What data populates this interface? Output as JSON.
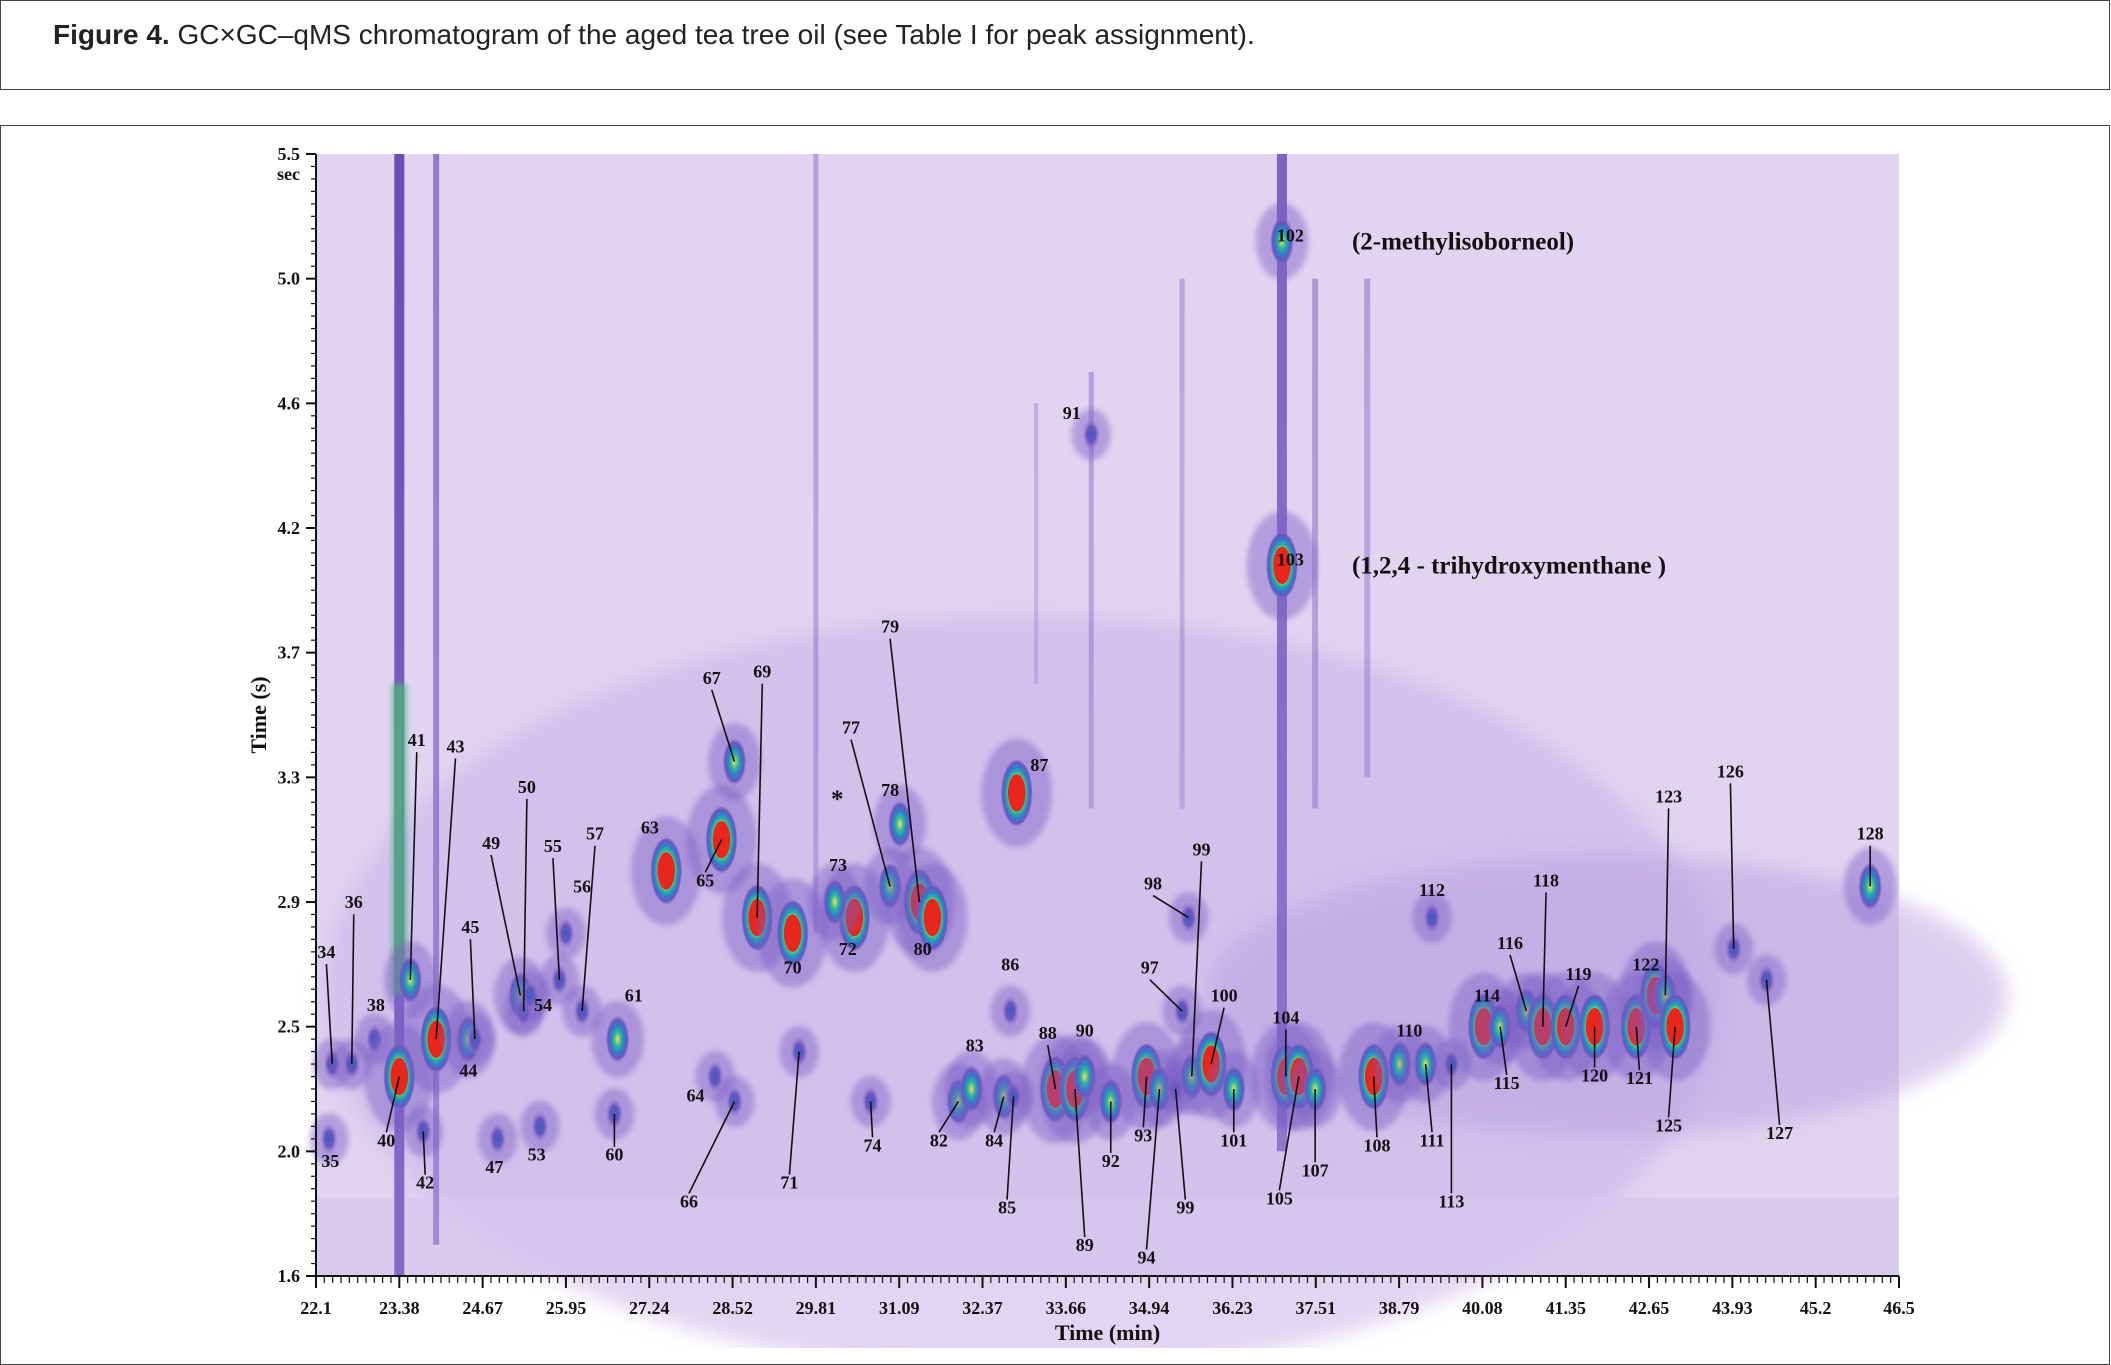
{
  "caption": {
    "label": "Figure 4.",
    "text": " GC×GC–qMS chromatogram of the aged tea tree oil (see Table I for peak assignment)."
  },
  "chart_data": {
    "type": "heatmap",
    "xlabel": "Time (min)",
    "ylabel": "Time (s)",
    "yunit_top": "sec",
    "xlim": [
      22.1,
      46.5
    ],
    "ylim": [
      1.6,
      5.5
    ],
    "x_ticks": [
      "22.1",
      "23.38",
      "24.67",
      "25.95",
      "27.24",
      "28.52",
      "29.81",
      "31.09",
      "32.37",
      "33.66",
      "34.94",
      "36.23",
      "37.51",
      "38.79",
      "40.08",
      "41.35",
      "42.65",
      "43.93",
      "45.2",
      "46.5"
    ],
    "y_ticks": [
      {
        "label": "1.6",
        "value": 1.6
      },
      {
        "label": "2.0",
        "value": 2.0
      },
      {
        "label": "2.5",
        "value": 2.5
      },
      {
        "label": "2.9",
        "value": 2.9
      },
      {
        "label": "3.3",
        "value": 3.3
      },
      {
        "label": "3.7",
        "value": 3.7
      },
      {
        "label": "4.2",
        "value": 4.2
      },
      {
        "label": "4.6",
        "value": 4.6
      },
      {
        "label": "5.0",
        "value": 5.0
      },
      {
        "label": "5.5",
        "value": 5.5
      }
    ],
    "colors": {
      "background": "#e8dff2",
      "low": "#8a6ec9",
      "mid": "#2fa3c9",
      "high": "#f6e24a",
      "peak": "#e8261c"
    },
    "annotations": [
      {
        "peak": "102",
        "text": "(2-methylisoborneol)",
        "x": 36.99,
        "y": 5.15
      },
      {
        "peak": "103",
        "text": "(1,2,4 - trihydroxymenthane   )",
        "x": 36.99,
        "y": 4.05
      }
    ],
    "asterisk": {
      "text": "*",
      "x": 29.95,
      "y": 3.25
    },
    "peaks": [
      {
        "id": "34",
        "x": 22.35,
        "y": 2.35,
        "i": 0.2,
        "lx": 22.26,
        "ly": 2.72
      },
      {
        "id": "35",
        "x": 22.3,
        "y": 2.05,
        "i": 0.1,
        "lx": 22.32,
        "ly": 1.95
      },
      {
        "id": "36",
        "x": 22.65,
        "y": 2.35,
        "i": 0.2,
        "lx": 22.68,
        "ly": 2.88
      },
      {
        "id": "38",
        "x": 23.0,
        "y": 2.45,
        "i": 0.4,
        "lx": 23.02,
        "ly": 2.55
      },
      {
        "id": "40",
        "x": 23.38,
        "y": 2.3,
        "i": 1.0,
        "lx": 23.18,
        "ly": 2.02
      },
      {
        "id": "41",
        "x": 23.55,
        "y": 2.65,
        "i": 0.6,
        "lx": 23.65,
        "ly": 3.4
      },
      {
        "id": "42",
        "x": 23.75,
        "y": 2.08,
        "i": 0.3,
        "lx": 23.78,
        "ly": 1.88
      },
      {
        "id": "43",
        "x": 23.95,
        "y": 2.45,
        "i": 1.0,
        "lx": 24.25,
        "ly": 3.38
      },
      {
        "id": "44",
        "x": 24.45,
        "y": 2.45,
        "i": 0.6,
        "lx": 24.45,
        "ly": 2.3
      },
      {
        "id": "45",
        "x": 24.55,
        "y": 2.45,
        "i": 0.4,
        "lx": 24.48,
        "ly": 2.8
      },
      {
        "id": "47",
        "x": 24.9,
        "y": 2.05,
        "i": 0.2,
        "lx": 24.85,
        "ly": 1.93
      },
      {
        "id": "49",
        "x": 25.25,
        "y": 2.6,
        "i": 0.6,
        "lx": 24.8,
        "ly": 3.07
      },
      {
        "id": "50",
        "x": 25.3,
        "y": 2.55,
        "i": 0.3,
        "lx": 25.35,
        "ly": 3.25
      },
      {
        "id": "53",
        "x": 25.55,
        "y": 2.1,
        "i": 0.3,
        "lx": 25.5,
        "ly": 1.97
      },
      {
        "id": "54",
        "x": 25.4,
        "y": 2.6,
        "i": 0.3,
        "lx": 25.6,
        "ly": 2.55
      },
      {
        "id": "55",
        "x": 25.85,
        "y": 2.65,
        "i": 0.2,
        "lx": 25.75,
        "ly": 3.06
      },
      {
        "id": "56",
        "x": 25.95,
        "y": 2.8,
        "i": 0.2,
        "lx": 26.2,
        "ly": 2.93
      },
      {
        "id": "57",
        "x": 26.2,
        "y": 2.55,
        "i": 0.2,
        "lx": 26.4,
        "ly": 3.1
      },
      {
        "id": "60",
        "x": 26.7,
        "y": 2.15,
        "i": 0.4,
        "lx": 26.7,
        "ly": 1.97
      },
      {
        "id": "61",
        "x": 26.75,
        "y": 2.45,
        "i": 0.7,
        "lx": 27.0,
        "ly": 2.58
      },
      {
        "id": "63",
        "x": 27.5,
        "y": 3.0,
        "i": 0.9,
        "lx": 27.25,
        "ly": 3.12
      },
      {
        "id": "64",
        "x": 28.25,
        "y": 2.3,
        "i": 0.3,
        "lx": 27.95,
        "ly": 2.2
      },
      {
        "id": "65",
        "x": 28.35,
        "y": 3.1,
        "i": 1.0,
        "lx": 28.1,
        "ly": 2.95
      },
      {
        "id": "66",
        "x": 28.55,
        "y": 2.2,
        "i": 0.3,
        "lx": 27.85,
        "ly": 1.82
      },
      {
        "id": "67",
        "x": 28.55,
        "y": 3.35,
        "i": 0.7,
        "lx": 28.2,
        "ly": 3.6
      },
      {
        "id": "69",
        "x": 28.9,
        "y": 2.85,
        "i": 1.0,
        "lx": 28.98,
        "ly": 3.62
      },
      {
        "id": "70",
        "x": 29.45,
        "y": 2.8,
        "i": 0.9,
        "lx": 29.45,
        "ly": 2.67
      },
      {
        "id": "71",
        "x": 29.55,
        "y": 2.4,
        "i": 0.3,
        "lx": 29.4,
        "ly": 1.88
      },
      {
        "id": "72",
        "x": 30.4,
        "y": 2.85,
        "i": 0.8,
        "lx": 30.3,
        "ly": 2.73
      },
      {
        "id": "73",
        "x": 30.1,
        "y": 2.9,
        "i": 0.6,
        "lx": 30.15,
        "ly": 3.0
      },
      {
        "id": "74",
        "x": 30.65,
        "y": 2.2,
        "i": 0.4,
        "lx": 30.68,
        "ly": 2.0
      },
      {
        "id": "77",
        "x": 30.95,
        "y": 2.95,
        "i": 0.5,
        "lx": 30.35,
        "ly": 3.44
      },
      {
        "id": "78",
        "x": 31.1,
        "y": 3.15,
        "i": 0.5,
        "lx": 30.95,
        "ly": 3.24
      },
      {
        "id": "79",
        "x": 31.4,
        "y": 2.9,
        "i": 1.0,
        "lx": 30.95,
        "ly": 3.78
      },
      {
        "id": "80",
        "x": 31.6,
        "y": 2.85,
        "i": 0.8,
        "lx": 31.45,
        "ly": 2.73
      },
      {
        "id": "82",
        "x": 32.0,
        "y": 2.2,
        "i": 0.7,
        "lx": 31.7,
        "ly": 2.02
      },
      {
        "id": "83",
        "x": 32.2,
        "y": 2.25,
        "i": 0.7,
        "lx": 32.25,
        "ly": 2.4
      },
      {
        "id": "84",
        "x": 32.7,
        "y": 2.22,
        "i": 0.5,
        "lx": 32.55,
        "ly": 2.02
      },
      {
        "id": "85",
        "x": 32.85,
        "y": 2.22,
        "i": 0.4,
        "lx": 32.75,
        "ly": 1.8
      },
      {
        "id": "86",
        "x": 32.8,
        "y": 2.55,
        "i": 0.4,
        "lx": 32.8,
        "ly": 2.68
      },
      {
        "id": "87",
        "x": 32.9,
        "y": 3.25,
        "i": 0.9,
        "lx": 33.25,
        "ly": 3.32
      },
      {
        "id": "88",
        "x": 33.5,
        "y": 2.25,
        "i": 0.8,
        "lx": 33.38,
        "ly": 2.45
      },
      {
        "id": "89",
        "x": 33.8,
        "y": 2.25,
        "i": 0.8,
        "lx": 33.95,
        "ly": 1.68
      },
      {
        "id": "90",
        "x": 33.95,
        "y": 2.3,
        "i": 0.7,
        "lx": 33.95,
        "ly": 2.46
      },
      {
        "id": "91",
        "x": 34.05,
        "y": 4.5,
        "i": 0.4,
        "lx": 33.75,
        "ly": 4.55
      },
      {
        "id": "92",
        "x": 34.35,
        "y": 2.2,
        "i": 0.5,
        "lx": 34.35,
        "ly": 1.95
      },
      {
        "id": "93",
        "x": 34.9,
        "y": 2.3,
        "i": 1.0,
        "lx": 34.85,
        "ly": 2.04
      },
      {
        "id": "94",
        "x": 35.1,
        "y": 2.25,
        "i": 0.6,
        "lx": 34.9,
        "ly": 1.64
      },
      {
        "id": "97",
        "x": 35.45,
        "y": 2.55,
        "i": 0.3,
        "lx": 34.95,
        "ly": 2.67
      },
      {
        "id": "98",
        "x": 35.55,
        "y": 2.85,
        "i": 0.3,
        "lx": 35.0,
        "ly": 2.94
      },
      {
        "id": "99",
        "x": 35.35,
        "y": 2.25,
        "i": 0.4,
        "lx": 35.5,
        "ly": 1.8
      },
      {
        "id": "99",
        "x": 35.6,
        "y": 2.3,
        "i": 0.7,
        "lx": 35.75,
        "ly": 3.05
      },
      {
        "id": "100",
        "x": 35.9,
        "y": 2.35,
        "i": 0.8,
        "lx": 36.1,
        "ly": 2.58
      },
      {
        "id": "101",
        "x": 36.25,
        "y": 2.25,
        "i": 0.7,
        "lx": 36.25,
        "ly": 2.02
      },
      {
        "id": "102",
        "x": 36.99,
        "y": 5.15,
        "i": 0.6,
        "lx": 37.12,
        "ly": 5.15
      },
      {
        "id": "103",
        "x": 36.99,
        "y": 4.05,
        "i": 1.0,
        "lx": 37.12,
        "ly": 4.05
      },
      {
        "id": "104",
        "x": 37.05,
        "y": 2.3,
        "i": 1.0,
        "lx": 37.05,
        "ly": 2.51
      },
      {
        "id": "105",
        "x": 37.25,
        "y": 2.3,
        "i": 0.9,
        "lx": 36.95,
        "ly": 1.83
      },
      {
        "id": "107",
        "x": 37.5,
        "y": 2.25,
        "i": 0.6,
        "lx": 37.5,
        "ly": 1.92
      },
      {
        "id": "108",
        "x": 38.4,
        "y": 2.3,
        "i": 1.0,
        "lx": 38.45,
        "ly": 2.0
      },
      {
        "id": "110",
        "x": 38.8,
        "y": 2.35,
        "i": 0.7,
        "lx": 38.95,
        "ly": 2.46
      },
      {
        "id": "111",
        "x": 39.2,
        "y": 2.35,
        "i": 0.5,
        "lx": 39.3,
        "ly": 2.02
      },
      {
        "id": "112",
        "x": 39.3,
        "y": 2.85,
        "i": 0.2,
        "lx": 39.3,
        "ly": 2.92
      },
      {
        "id": "113",
        "x": 39.6,
        "y": 2.35,
        "i": 0.3,
        "lx": 39.6,
        "ly": 1.82
      },
      {
        "id": "114",
        "x": 40.1,
        "y": 2.5,
        "i": 0.8,
        "lx": 40.15,
        "ly": 2.58
      },
      {
        "id": "115",
        "x": 40.35,
        "y": 2.5,
        "i": 0.7,
        "lx": 40.45,
        "ly": 2.25
      },
      {
        "id": "116",
        "x": 40.75,
        "y": 2.55,
        "i": 0.7,
        "lx": 40.5,
        "ly": 2.75
      },
      {
        "id": "118",
        "x": 41.0,
        "y": 2.5,
        "i": 1.0,
        "lx": 41.05,
        "ly": 2.95
      },
      {
        "id": "119",
        "x": 41.35,
        "y": 2.5,
        "i": 0.8,
        "lx": 41.55,
        "ly": 2.65
      },
      {
        "id": "120",
        "x": 41.8,
        "y": 2.5,
        "i": 0.8,
        "lx": 41.8,
        "ly": 2.28
      },
      {
        "id": "121",
        "x": 42.45,
        "y": 2.5,
        "i": 1.0,
        "lx": 42.5,
        "ly": 2.27
      },
      {
        "id": "122",
        "x": 42.75,
        "y": 2.6,
        "i": 0.8,
        "lx": 42.6,
        "ly": 2.68
      },
      {
        "id": "123",
        "x": 42.9,
        "y": 2.6,
        "i": 0.6,
        "lx": 42.95,
        "ly": 3.22
      },
      {
        "id": "125",
        "x": 43.05,
        "y": 2.5,
        "i": 0.8,
        "lx": 42.95,
        "ly": 2.08
      },
      {
        "id": "126",
        "x": 43.95,
        "y": 2.75,
        "i": 0.4,
        "lx": 43.9,
        "ly": 3.3
      },
      {
        "id": "127",
        "x": 44.45,
        "y": 2.65,
        "i": 0.4,
        "lx": 44.65,
        "ly": 2.05
      },
      {
        "id": "128",
        "x": 46.05,
        "y": 2.95,
        "i": 0.7,
        "lx": 46.05,
        "ly": 3.1
      }
    ]
  }
}
